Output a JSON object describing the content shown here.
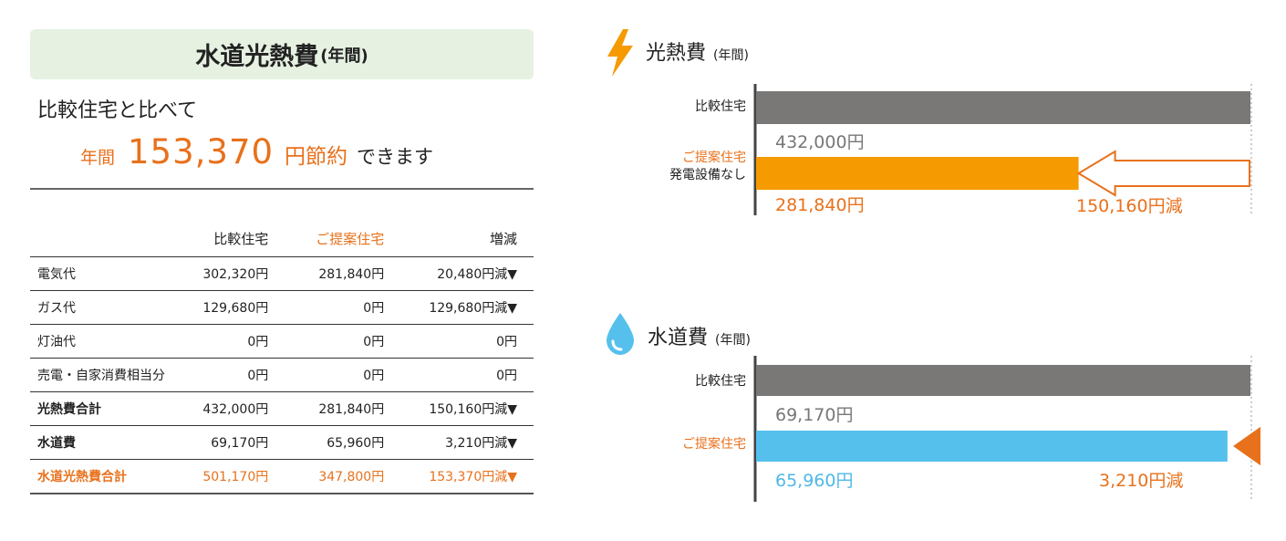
{
  "summary": {
    "title": "水道光熱費",
    "title_suffix": "(年間)",
    "compare_text": "比較住宅と比べて",
    "saving_prefix": "年間",
    "saving_amount": "153,370",
    "saving_unit": "円節約",
    "saving_suffix": "できます"
  },
  "table": {
    "headers": [
      "",
      "比較住宅",
      "ご提案住宅",
      "増減"
    ],
    "rows": [
      {
        "label": "電気代",
        "compare": "302,320円",
        "proposal": "281,840円",
        "diff": "20,480円減▼"
      },
      {
        "label": "ガス代",
        "compare": "129,680円",
        "proposal": "0円",
        "diff": "129,680円減▼"
      },
      {
        "label": "灯油代",
        "compare": "0円",
        "proposal": "0円",
        "diff": "0円"
      },
      {
        "label": "売電・自家消費相当分",
        "compare": "0円",
        "proposal": "0円",
        "diff": "0円"
      },
      {
        "label": "光熱費合計",
        "compare": "432,000円",
        "proposal": "281,840円",
        "diff": "150,160円減▼"
      },
      {
        "label": "水道費",
        "compare": "69,170円",
        "proposal": "65,960円",
        "diff": "3,210円減▼"
      },
      {
        "label": "水道光熱費合計",
        "compare": "501,170円",
        "proposal": "347,800円",
        "diff": "153,370円減▼"
      }
    ]
  },
  "colors": {
    "accent_orange": "#e8711c",
    "bar_gray": "#7a7876",
    "bar_orange": "#f59a00",
    "bar_blue": "#55c0ec",
    "title_bg": "#e6f1e2"
  },
  "chart_data": [
    {
      "type": "bar",
      "title": "光熱費",
      "subtitle": "(年間)",
      "icon": "lightning-icon",
      "orientation": "horizontal",
      "categories": [
        "比較住宅",
        "ご提案住宅 発電設備なし"
      ],
      "category_lines": [
        [
          "比較住宅"
        ],
        [
          "ご提案住宅",
          "発電設備なし"
        ]
      ],
      "values": [
        432000,
        281840
      ],
      "value_labels": [
        "432,000円",
        "281,840円"
      ],
      "diff_label": "150,160円減",
      "diff_value": 150160,
      "colors": [
        "#7a7876",
        "#f59a00"
      ],
      "grid": false
    },
    {
      "type": "bar",
      "title": "水道費",
      "subtitle": "(年間)",
      "icon": "water-drop-icon",
      "orientation": "horizontal",
      "categories": [
        "比較住宅",
        "ご提案住宅"
      ],
      "category_lines": [
        [
          "比較住宅"
        ],
        [
          "ご提案住宅"
        ]
      ],
      "values": [
        69170,
        65960
      ],
      "value_labels": [
        "69,170円",
        "65,960円"
      ],
      "diff_label": "3,210円減",
      "diff_value": 3210,
      "colors": [
        "#7a7876",
        "#55c0ec"
      ],
      "grid": false
    }
  ]
}
